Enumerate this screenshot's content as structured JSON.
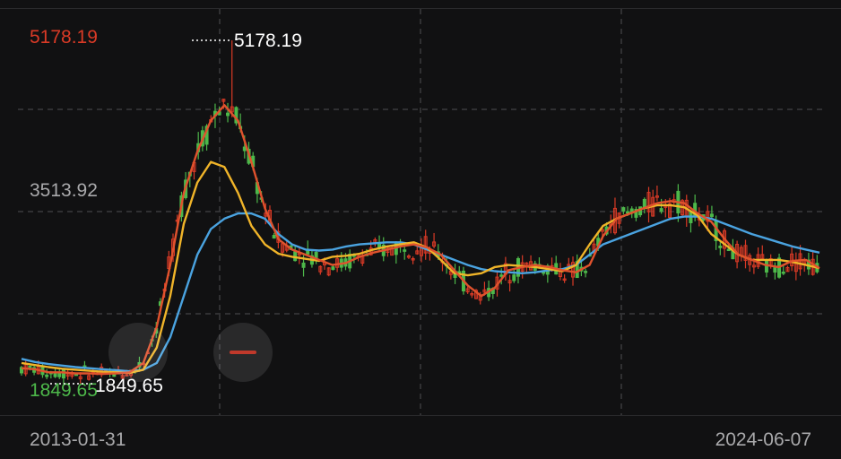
{
  "chart_data": {
    "type": "candlestick",
    "y_axis": {
      "max_label": "5178.19",
      "mid_label": "3513.92",
      "min_label": "1849.65",
      "ylim": [
        1849.65,
        5178.19
      ]
    },
    "annotations": {
      "high": "5178.19",
      "low": "1849.65"
    },
    "x_axis": {
      "start_label": "2013-01-31",
      "end_label": "2024-06-07"
    },
    "grid": true,
    "colors": {
      "up": "#d93a26",
      "down": "#4db84a",
      "ma_short": "#e0522d",
      "ma_mid": "#f0b429",
      "ma_long": "#4aa3e0",
      "background": "#111112"
    },
    "ma_short": [
      2000,
      1990,
      1960,
      1960,
      1950,
      1950,
      1945,
      1950,
      1960,
      2050,
      2400,
      3000,
      3700,
      4100,
      4400,
      4550,
      4400,
      4000,
      3550,
      3250,
      3150,
      3100,
      3050,
      3000,
      3020,
      3080,
      3120,
      3150,
      3180,
      3200,
      3170,
      3100,
      2950,
      2800,
      2700,
      2780,
      2950,
      2980,
      3000,
      2980,
      2950,
      2930,
      3000,
      3280,
      3450,
      3500,
      3550,
      3600,
      3620,
      3600,
      3500,
      3420,
      3250,
      3100,
      3050,
      3000,
      2980,
      3040,
      3050,
      2970
    ],
    "ma_mid": [
      2050,
      2030,
      2010,
      1995,
      1985,
      1975,
      1965,
      1960,
      1955,
      1985,
      2200,
      2700,
      3400,
      3800,
      4000,
      3950,
      3700,
      3380,
      3200,
      3110,
      3080,
      3060,
      3040,
      3080,
      3090,
      3110,
      3150,
      3180,
      3200,
      3220,
      3170,
      3050,
      2920,
      2900,
      2920,
      2980,
      3000,
      2990,
      2980,
      2960,
      2940,
      3000,
      3200,
      3380,
      3450,
      3500,
      3550,
      3580,
      3580,
      3560,
      3480,
      3300,
      3200,
      3100,
      3050,
      3050,
      3050,
      3030,
      3000,
      2970
    ],
    "ma_long": [
      2090,
      2060,
      2040,
      2025,
      2010,
      2000,
      1990,
      1980,
      1970,
      1985,
      2050,
      2300,
      2700,
      3100,
      3350,
      3450,
      3500,
      3500,
      3450,
      3300,
      3200,
      3150,
      3140,
      3150,
      3180,
      3200,
      3210,
      3220,
      3220,
      3200,
      3150,
      3100,
      3050,
      3000,
      2960,
      2940,
      2930,
      2920,
      2930,
      2950,
      2960,
      3000,
      3100,
      3200,
      3250,
      3300,
      3350,
      3400,
      3450,
      3470,
      3470,
      3450,
      3400,
      3350,
      3300,
      3260,
      3220,
      3180,
      3150,
      3120
    ]
  }
}
